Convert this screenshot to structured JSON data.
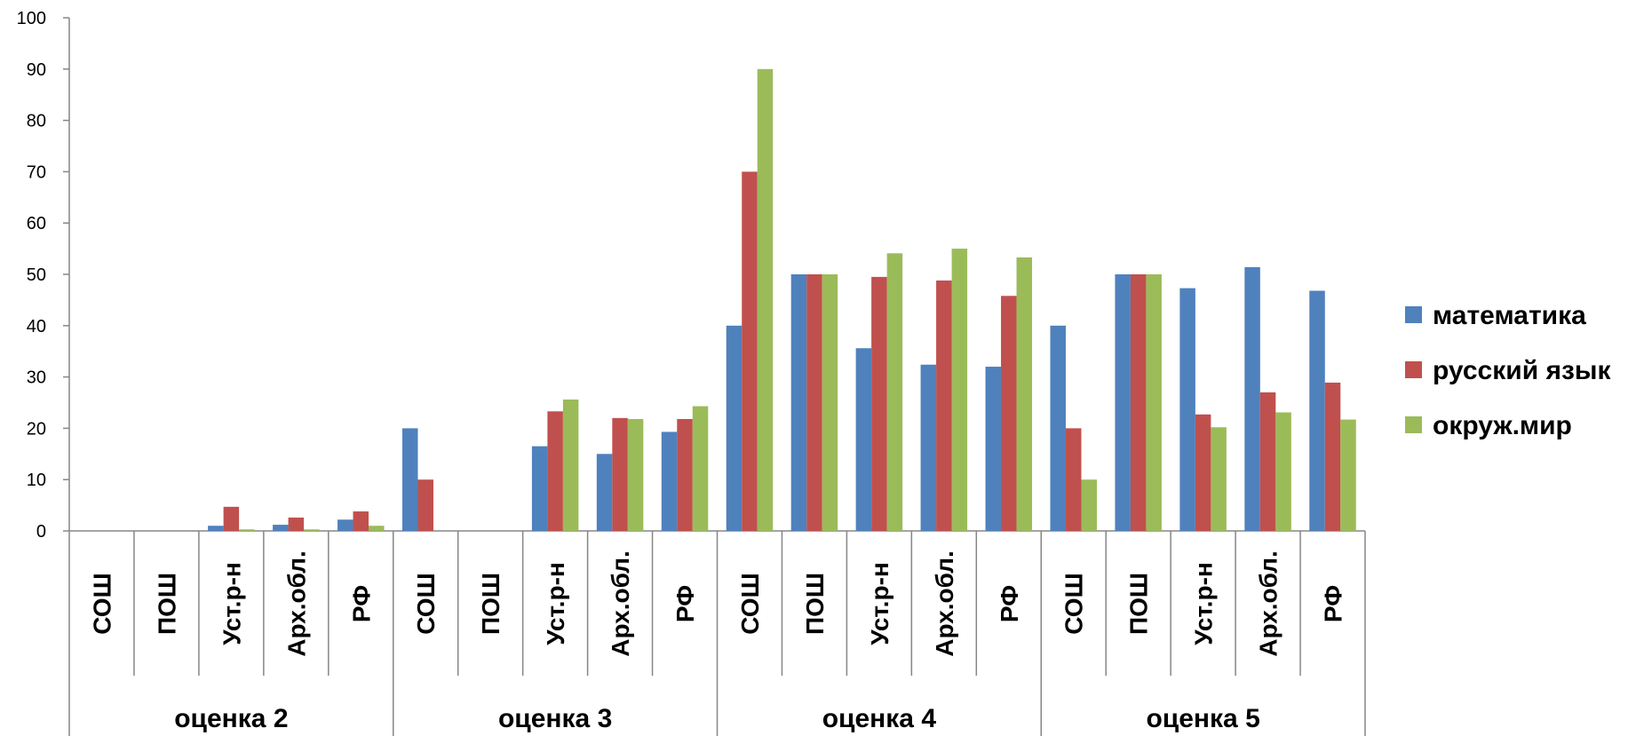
{
  "chart_data": {
    "type": "bar",
    "ylim": [
      0,
      100
    ],
    "y_ticks": [
      0,
      10,
      20,
      30,
      40,
      50,
      60,
      70,
      80,
      90,
      100
    ],
    "groups": [
      "оценка 2",
      "оценка 3",
      "оценка 4",
      "оценка 5"
    ],
    "subcategories": [
      "СОШ",
      "ПОШ",
      "Уст.р-н",
      "Арх.обл.",
      "РФ"
    ],
    "series": [
      {
        "name": "математика",
        "color": "#4F81BD",
        "values": [
          0,
          0,
          1,
          1.2,
          2.2,
          20,
          0,
          16.5,
          15,
          19.3,
          40,
          50,
          35.6,
          32.4,
          32,
          40,
          50,
          47.3,
          51.4,
          46.8
        ]
      },
      {
        "name": "русский язык",
        "color": "#C0504D",
        "values": [
          0,
          0,
          4.7,
          2.6,
          3.8,
          10,
          0,
          23.3,
          22,
          21.8,
          70,
          50,
          49.5,
          48.8,
          45.8,
          20,
          50,
          22.7,
          27,
          28.9
        ]
      },
      {
        "name": "окруж.мир",
        "color": "#9BBB59",
        "values": [
          0,
          0,
          0.3,
          0.3,
          1,
          0,
          0,
          25.6,
          21.8,
          24.3,
          90,
          50,
          54.1,
          55,
          53.3,
          10,
          50,
          20.2,
          23.1,
          21.7
        ]
      }
    ],
    "grid": false,
    "legend_position": "right"
  }
}
